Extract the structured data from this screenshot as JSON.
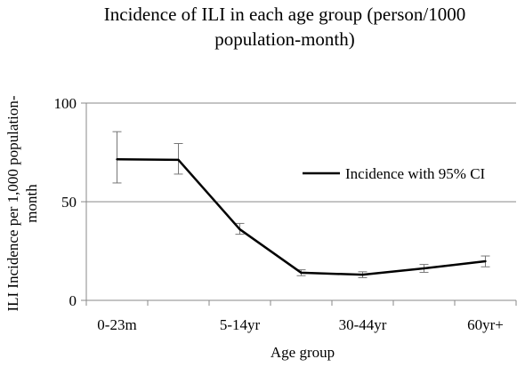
{
  "chart_data": {
    "type": "line",
    "title_lines": [
      "Incidence of ILI in each age group (person/1000",
      "population-month)"
    ],
    "xlabel": "Age group",
    "ylabel_lines": [
      "ILI Incidence per 1,000 population-",
      "month"
    ],
    "ylim": [
      0,
      100
    ],
    "yticks": [
      0,
      50,
      100
    ],
    "ytick_labels": [
      "0",
      "50",
      "100"
    ],
    "grid": "horizontal",
    "legend_placement": "right",
    "categories": [
      "0-23m",
      "",
      "5-14yr",
      "",
      "30-44yr",
      "",
      "60yr+"
    ],
    "series": [
      {
        "name": "Incidence with 95% CI",
        "values": [
          71.5,
          71.2,
          36.0,
          14.0,
          13.0,
          16.2,
          19.8
        ],
        "ci_low": [
          59.5,
          64.0,
          33.5,
          12.5,
          11.5,
          14.2,
          17.0
        ],
        "ci_high": [
          85.5,
          79.5,
          39.0,
          15.5,
          14.5,
          18.2,
          22.5
        ]
      }
    ],
    "colors": {
      "line": "#000000",
      "grid": "#888888",
      "axis": "#888888",
      "errorbar": "#777777"
    }
  }
}
